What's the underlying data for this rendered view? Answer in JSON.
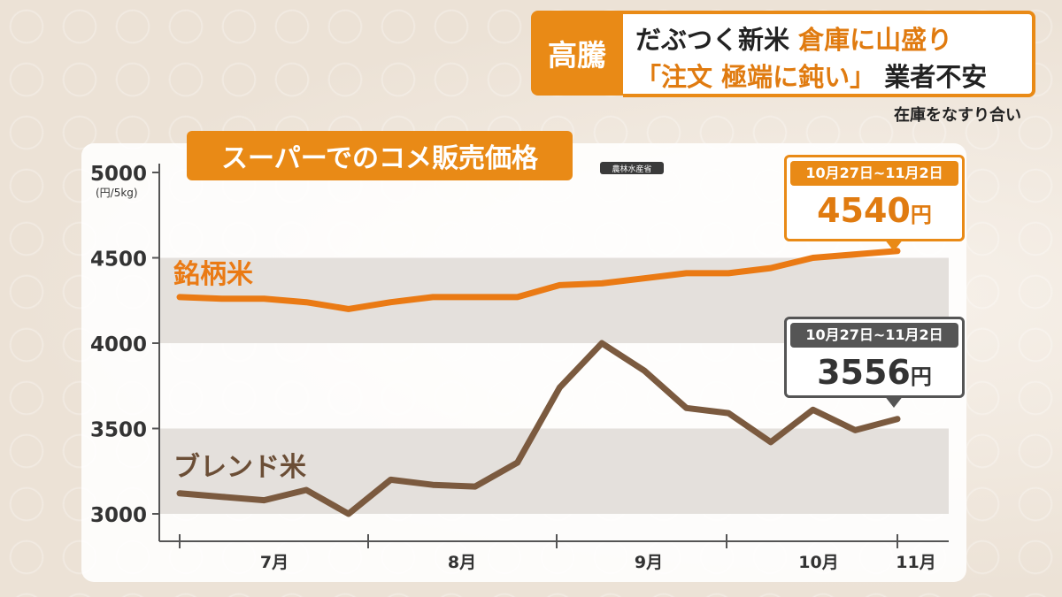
{
  "headline": {
    "tag": "高騰",
    "line1_a": "だぶつく新米",
    "line1_b": "倉庫に山盛り",
    "line2_a": "「注文 極端に鈍い」",
    "line2_b": "業者不安"
  },
  "subcaption": "在庫をなすり合い",
  "chart_title": "スーパーでのコメ販売価格",
  "source": "農林水産省",
  "colors": {
    "accent": "#e98a16",
    "brand_series": "#ea7a14",
    "blend_series": "#7b5a3f",
    "band": "#e4e0dc"
  },
  "callouts": [
    {
      "date": "10月27日~11月2日",
      "value": "4540",
      "unit": "円"
    },
    {
      "date": "10月27日~11月2日",
      "value": "3556",
      "unit": "円"
    }
  ],
  "chart_data": {
    "type": "line",
    "title": "スーパーでのコメ販売価格",
    "ylabel": "(円/5kg)",
    "ylim": [
      3000,
      5000
    ],
    "yticks": [
      3000,
      3500,
      4000,
      4500,
      5000
    ],
    "grid": false,
    "x_labels": [
      "7月",
      "8月",
      "9月",
      "10月",
      "11月"
    ],
    "x": [
      1,
      2,
      3,
      4,
      5,
      6,
      7,
      8,
      9,
      10,
      11,
      12,
      13,
      14,
      15,
      16,
      17,
      18
    ],
    "series": [
      {
        "name": "銘柄米",
        "values": [
          4270,
          4260,
          4260,
          4240,
          4200,
          4240,
          4270,
          4270,
          4270,
          4340,
          4350,
          4380,
          4410,
          4410,
          4440,
          4500,
          4520,
          4540
        ]
      },
      {
        "name": "ブレンド米",
        "values": [
          3120,
          3100,
          3080,
          3140,
          3000,
          3200,
          3170,
          3160,
          3300,
          3740,
          4000,
          3840,
          3620,
          3590,
          3420,
          3610,
          3490,
          3556
        ]
      }
    ]
  }
}
